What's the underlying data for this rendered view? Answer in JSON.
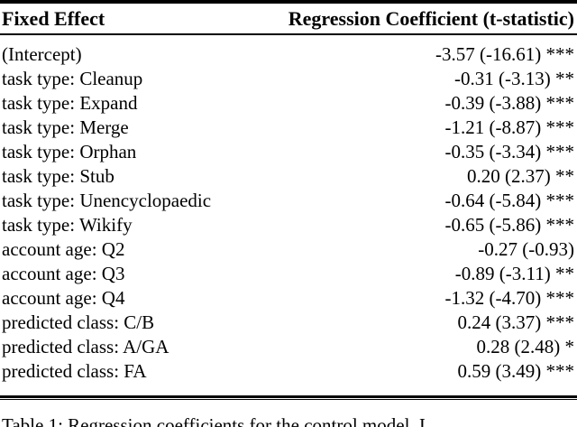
{
  "colors": {
    "text": "#000000",
    "background": "#ffffff",
    "rule": "#000000"
  },
  "table": {
    "header": {
      "col1": "Fixed Effect",
      "col2": "Regression Coefficient (t-statistic)"
    },
    "rows": [
      {
        "label": "(Intercept)",
        "value": "-3.57 (-16.61) ***"
      },
      {
        "label": "task type: Cleanup",
        "value": "-0.31 (-3.13) **"
      },
      {
        "label": "task type: Expand",
        "value": "-0.39 (-3.88) ***"
      },
      {
        "label": "task type: Merge",
        "value": "-1.21 (-8.87) ***"
      },
      {
        "label": "task type: Orphan",
        "value": "-0.35 (-3.34) ***"
      },
      {
        "label": "task type: Stub",
        "value": "0.20 (2.37) **"
      },
      {
        "label": "task type: Unencyclopaedic",
        "value": "-0.64 (-5.84) ***"
      },
      {
        "label": "task type: Wikify",
        "value": "-0.65 (-5.86) ***"
      },
      {
        "label": "account age: Q2",
        "value": "-0.27 (-0.93)"
      },
      {
        "label": "account age: Q3",
        "value": "-0.89 (-3.11) **"
      },
      {
        "label": "account age: Q4",
        "value": "-1.32 (-4.70) ***"
      },
      {
        "label": "predicted class: C/B",
        "value": "0.24 (3.37) ***"
      },
      {
        "label": "predicted class: A/GA",
        "value": "0.28 (2.48) *"
      },
      {
        "label": "predicted class: FA",
        "value": "0.59 (3.49) ***"
      }
    ],
    "caption": "Table 1: Regression coefficients for the control model. I"
  }
}
